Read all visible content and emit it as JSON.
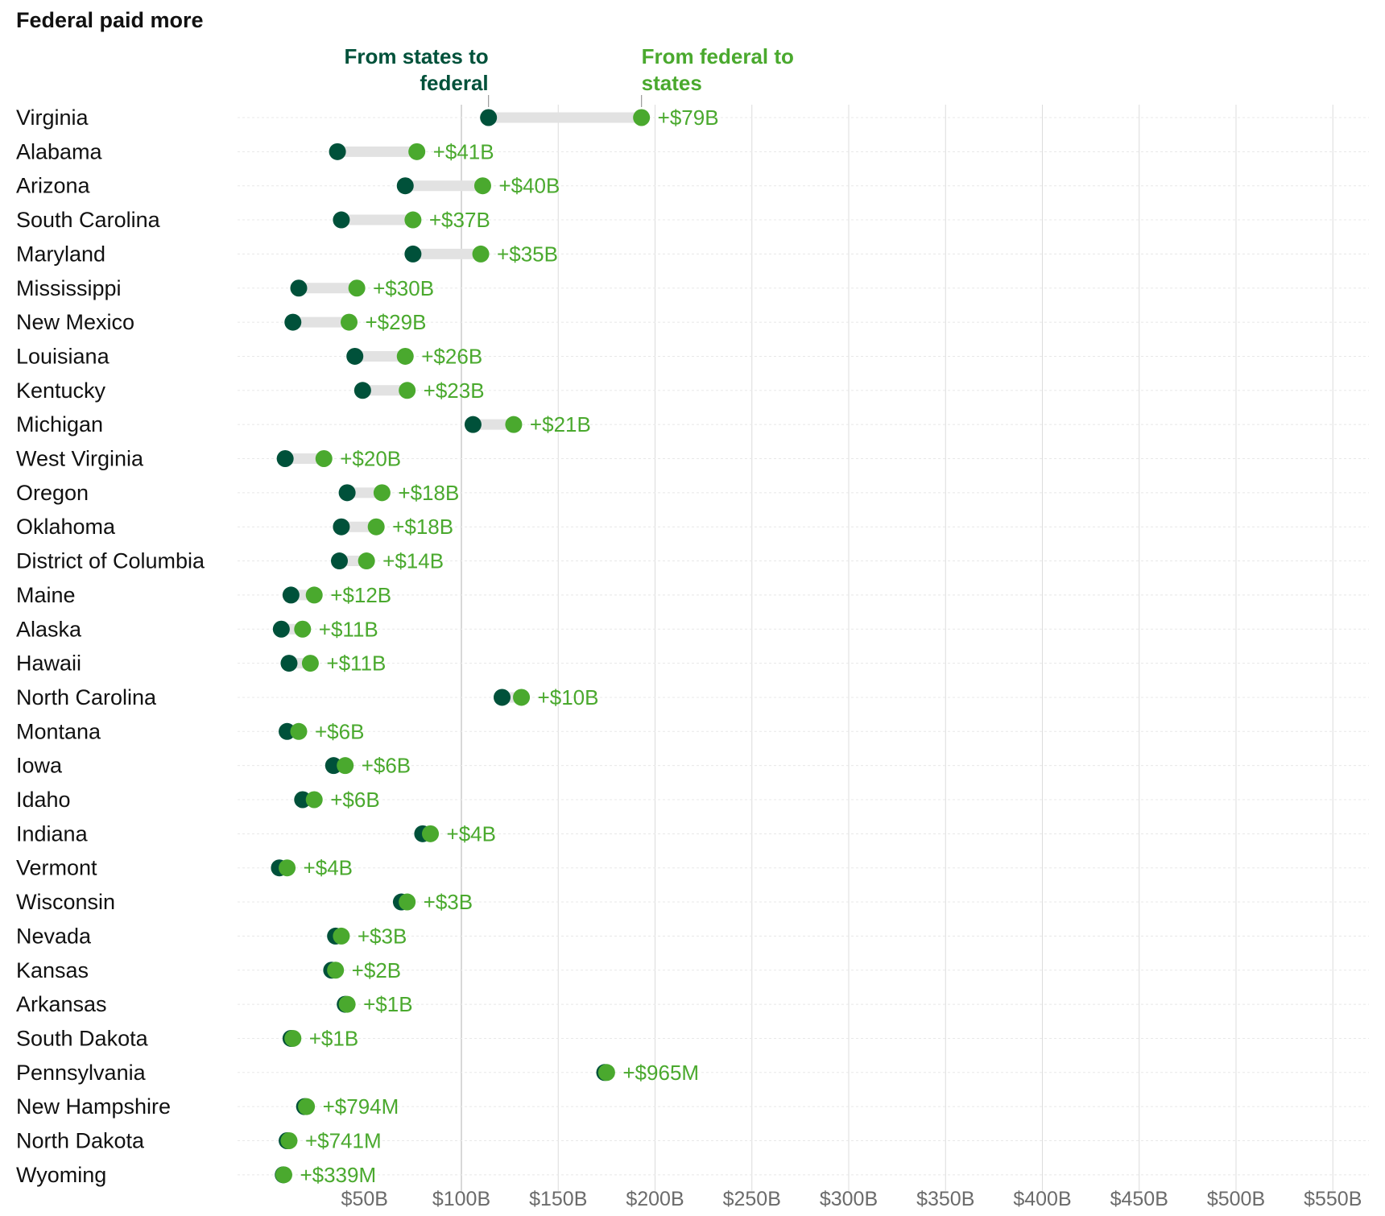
{
  "chart_data": {
    "type": "dumbbell",
    "title": "Federal paid more",
    "legend": {
      "from_states": {
        "lines": [
          "From states to",
          "federal"
        ],
        "color": "#00513a"
      },
      "from_federal": {
        "lines": [
          "From federal to",
          "states"
        ],
        "color": "#4aa92e"
      }
    },
    "colors": {
      "states_to_federal": "#00513a",
      "federal_to_states": "#4aa92e",
      "connector": "#e2e2e2",
      "grid": "#dcdcdc",
      "row_line": "#e8e8e8"
    },
    "xlim": [
      -115,
      590
    ],
    "xticks": [
      50,
      100,
      150,
      200,
      250,
      300,
      350,
      400,
      450,
      500,
      550
    ],
    "xtick_labels": [
      "$50B",
      "$100B",
      "$150B",
      "$200B",
      "$250B",
      "$300B",
      "$350B",
      "$400B",
      "$450B",
      "$500B",
      "$550B"
    ],
    "unit": "billions USD",
    "rows": [
      {
        "state": "Virginia",
        "states_to_federal": 114,
        "federal_to_states": 193,
        "delta_label": "+$79B"
      },
      {
        "state": "Alabama",
        "states_to_federal": 36,
        "federal_to_states": 77,
        "delta_label": "+$41B"
      },
      {
        "state": "Arizona",
        "states_to_federal": 71,
        "federal_to_states": 111,
        "delta_label": "+$40B"
      },
      {
        "state": "South Carolina",
        "states_to_federal": 38,
        "federal_to_states": 75,
        "delta_label": "+$37B"
      },
      {
        "state": "Maryland",
        "states_to_federal": 75,
        "federal_to_states": 110,
        "delta_label": "+$35B"
      },
      {
        "state": "Mississippi",
        "states_to_federal": 16,
        "federal_to_states": 46,
        "delta_label": "+$30B"
      },
      {
        "state": "New Mexico",
        "states_to_federal": 13,
        "federal_to_states": 42,
        "delta_label": "+$29B"
      },
      {
        "state": "Louisiana",
        "states_to_federal": 45,
        "federal_to_states": 71,
        "delta_label": "+$26B"
      },
      {
        "state": "Kentucky",
        "states_to_federal": 49,
        "federal_to_states": 72,
        "delta_label": "+$23B"
      },
      {
        "state": "Michigan",
        "states_to_federal": 106,
        "federal_to_states": 127,
        "delta_label": "+$21B"
      },
      {
        "state": "West Virginia",
        "states_to_federal": 9,
        "federal_to_states": 29,
        "delta_label": "+$20B"
      },
      {
        "state": "Oregon",
        "states_to_federal": 41,
        "federal_to_states": 59,
        "delta_label": "+$18B"
      },
      {
        "state": "Oklahoma",
        "states_to_federal": 38,
        "federal_to_states": 56,
        "delta_label": "+$18B"
      },
      {
        "state": "District of Columbia",
        "states_to_federal": 37,
        "federal_to_states": 51,
        "delta_label": "+$14B"
      },
      {
        "state": "Maine",
        "states_to_federal": 12,
        "federal_to_states": 24,
        "delta_label": "+$12B"
      },
      {
        "state": "Alaska",
        "states_to_federal": 7,
        "federal_to_states": 18,
        "delta_label": "+$11B"
      },
      {
        "state": "Hawaii",
        "states_to_federal": 11,
        "federal_to_states": 22,
        "delta_label": "+$11B"
      },
      {
        "state": "North Carolina",
        "states_to_federal": 121,
        "federal_to_states": 131,
        "delta_label": "+$10B"
      },
      {
        "state": "Montana",
        "states_to_federal": 10,
        "federal_to_states": 16,
        "delta_label": "+$6B"
      },
      {
        "state": "Iowa",
        "states_to_federal": 34,
        "federal_to_states": 40,
        "delta_label": "+$6B"
      },
      {
        "state": "Idaho",
        "states_to_federal": 18,
        "federal_to_states": 24,
        "delta_label": "+$6B"
      },
      {
        "state": "Indiana",
        "states_to_federal": 80,
        "federal_to_states": 84,
        "delta_label": "+$4B"
      },
      {
        "state": "Vermont",
        "states_to_federal": 6,
        "federal_to_states": 10,
        "delta_label": "+$4B"
      },
      {
        "state": "Wisconsin",
        "states_to_federal": 69,
        "federal_to_states": 72,
        "delta_label": "+$3B"
      },
      {
        "state": "Nevada",
        "states_to_federal": 35,
        "federal_to_states": 38,
        "delta_label": "+$3B"
      },
      {
        "state": "Kansas",
        "states_to_federal": 33,
        "federal_to_states": 35,
        "delta_label": "+$2B"
      },
      {
        "state": "Arkansas",
        "states_to_federal": 40,
        "federal_to_states": 41,
        "delta_label": "+$1B"
      },
      {
        "state": "South Dakota",
        "states_to_federal": 12,
        "federal_to_states": 13,
        "delta_label": "+$1B"
      },
      {
        "state": "Pennsylvania",
        "states_to_federal": 174,
        "federal_to_states": 175,
        "delta_label": "+$965M"
      },
      {
        "state": "New Hampshire",
        "states_to_federal": 19,
        "federal_to_states": 20,
        "delta_label": "+$794M"
      },
      {
        "state": "North Dakota",
        "states_to_federal": 10,
        "federal_to_states": 11,
        "delta_label": "+$741M"
      },
      {
        "state": "Wyoming",
        "states_to_federal": 8,
        "federal_to_states": 8.3,
        "delta_label": "+$339M"
      }
    ]
  }
}
